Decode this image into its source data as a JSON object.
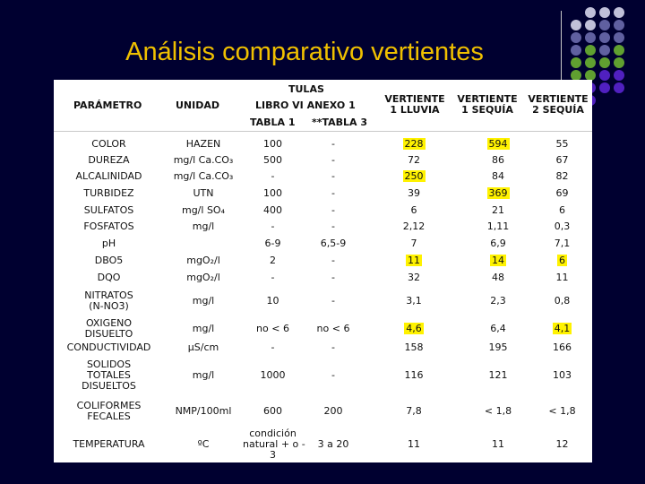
{
  "slide": {
    "title": "Análisis comparativo vertientes",
    "highlight_color": "#FFF200",
    "title_color": "#F0C000"
  },
  "decor": {
    "dot_colors": [
      "#c0c0d8",
      "#6060a0",
      "#60a030",
      "#5020c0"
    ]
  },
  "table": {
    "header": {
      "parametro": "PARÁMETRO",
      "unidad": "UNIDAD",
      "tulas": "TULAS",
      "libro": "LIBRO VI ANEXO 1",
      "tabla1": "TABLA 1",
      "tabla3": "**TABLA 3",
      "v1": [
        "VERTIENTE",
        "1 LLUVIA"
      ],
      "v2": [
        "VERTIENTE",
        "1 SEQUÍA"
      ],
      "v3": [
        "VERTIENTE",
        "2 SEQUÍA"
      ]
    },
    "rows": [
      {
        "p": [
          "COLOR"
        ],
        "u": [
          "HAZEN"
        ],
        "t1": [
          "100"
        ],
        "t3": [
          "-"
        ],
        "v1": "228",
        "v2": "594",
        "v3": "55",
        "h": [
          true,
          true,
          false
        ]
      },
      {
        "p": [
          "DUREZA"
        ],
        "u": [
          "mg/l Ca.CO₃"
        ],
        "t1": [
          "500"
        ],
        "t3": [
          "-"
        ],
        "v1": "72",
        "v2": "86",
        "v3": "67",
        "h": [
          false,
          false,
          false
        ]
      },
      {
        "p": [
          "ALCALINIDAD"
        ],
        "u": [
          "mg/l Ca.CO₃"
        ],
        "t1": [
          "-"
        ],
        "t3": [
          "-"
        ],
        "v1": "250",
        "v2": "84",
        "v3": "82",
        "h": [
          true,
          false,
          false
        ]
      },
      {
        "p": [
          "TURBIDEZ"
        ],
        "u": [
          "UTN"
        ],
        "t1": [
          "100"
        ],
        "t3": [
          "-"
        ],
        "v1": "39",
        "v2": "369",
        "v3": "69",
        "h": [
          false,
          true,
          false
        ]
      },
      {
        "p": [
          "SULFATOS"
        ],
        "u": [
          "mg/l SO₄"
        ],
        "t1": [
          "400"
        ],
        "t3": [
          "-"
        ],
        "v1": "6",
        "v2": "21",
        "v3": "6",
        "h": [
          false,
          false,
          false
        ]
      },
      {
        "p": [
          "FOSFATOS"
        ],
        "u": [
          "mg/l"
        ],
        "t1": [
          "-"
        ],
        "t3": [
          "-"
        ],
        "v1": "2,12",
        "v2": "1,11",
        "v3": "0,3",
        "h": [
          false,
          false,
          false
        ]
      },
      {
        "p": [
          "pH"
        ],
        "u": [
          ""
        ],
        "t1": [
          "6-9"
        ],
        "t3": [
          "6,5-9"
        ],
        "v1": "7",
        "v2": "6,9",
        "v3": "7,1",
        "h": [
          false,
          false,
          false
        ]
      },
      {
        "p": [
          "DBO5"
        ],
        "u": [
          "mgO₂/l"
        ],
        "t1": [
          "2"
        ],
        "t3": [
          "-"
        ],
        "v1": "11",
        "v2": "14",
        "v3": "6",
        "h": [
          true,
          true,
          true
        ]
      },
      {
        "p": [
          "DQO"
        ],
        "u": [
          "mgO₂/l"
        ],
        "t1": [
          "-"
        ],
        "t3": [
          "-"
        ],
        "v1": "32",
        "v2": "48",
        "v3": "11",
        "h": [
          false,
          false,
          false
        ]
      },
      {
        "p": [
          "NITRATOS",
          "(N-NO3)"
        ],
        "u": [
          "mg/l"
        ],
        "t1": [
          "10"
        ],
        "t3": [
          "-"
        ],
        "v1": "3,1",
        "v2": "2,3",
        "v3": "0,8",
        "h": [
          false,
          false,
          false
        ]
      },
      {
        "p": [
          "OXIGENO",
          "DISUELTO"
        ],
        "u": [
          "mg/l"
        ],
        "t1": [
          "no < 6"
        ],
        "t3": [
          "no < 6"
        ],
        "v1": "4,6",
        "v2": "6,4",
        "v3": "4,1",
        "h": [
          true,
          false,
          true
        ]
      },
      {
        "p": [
          "CONDUCTIVIDAD"
        ],
        "u": [
          "µS/cm"
        ],
        "t1": [
          "-"
        ],
        "t3": [
          "-"
        ],
        "v1": "158",
        "v2": "195",
        "v3": "166",
        "h": [
          false,
          false,
          false
        ]
      },
      {
        "p": [
          "SOLIDOS",
          "TOTALES",
          "DISUELTOS"
        ],
        "u": [
          "mg/l"
        ],
        "t1": [
          "1000"
        ],
        "t3": [
          "-"
        ],
        "v1": "116",
        "v2": "121",
        "v3": "103",
        "h": [
          false,
          false,
          false
        ]
      },
      {
        "p": [
          "COLIFORMES",
          "FECALES"
        ],
        "u": [
          "NMP/100ml"
        ],
        "t1": [
          "600"
        ],
        "t3": [
          "200"
        ],
        "v1": "7,8",
        "v2": "< 1,8",
        "v3": "< 1,8",
        "h": [
          false,
          false,
          false
        ]
      },
      {
        "p": [
          "TEMPERATURA"
        ],
        "u": [
          "ºC"
        ],
        "t1": [
          "condición",
          "natural + o -",
          "3"
        ],
        "t3": [
          "3 a 20"
        ],
        "v1": "11",
        "v2": "11",
        "v3": "12",
        "h": [
          false,
          false,
          false
        ]
      }
    ]
  }
}
